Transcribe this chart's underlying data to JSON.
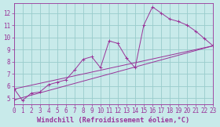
{
  "xlabel": "Windchill (Refroidissement éolien,°C)",
  "bg_color": "#c8eaea",
  "line_color": "#993399",
  "grid_color": "#99cccc",
  "text_color": "#993399",
  "xlim": [
    0,
    23
  ],
  "ylim": [
    4.5,
    12.8
  ],
  "xticks": [
    0,
    1,
    2,
    3,
    4,
    5,
    6,
    7,
    8,
    9,
    10,
    11,
    12,
    13,
    14,
    15,
    16,
    17,
    18,
    19,
    20,
    21,
    22,
    23
  ],
  "yticks": [
    5,
    6,
    7,
    8,
    9,
    10,
    11,
    12
  ],
  "line1_x": [
    0,
    1,
    2,
    3,
    4,
    5,
    6,
    7,
    8,
    9,
    10,
    11,
    12,
    13,
    14,
    15,
    16,
    17,
    18,
    19,
    20,
    21,
    22,
    23
  ],
  "line1_y": [
    5.8,
    4.8,
    5.4,
    5.5,
    6.1,
    6.3,
    6.5,
    7.3,
    8.2,
    8.4,
    7.5,
    9.7,
    9.5,
    8.3,
    7.5,
    11.0,
    12.5,
    12.0,
    11.5,
    11.3,
    11.0,
    10.5,
    9.9,
    9.3
  ],
  "line2_x": [
    0,
    23
  ],
  "line2_y": [
    5.75,
    9.3
  ],
  "line3_x": [
    0,
    23
  ],
  "line3_y": [
    4.85,
    9.3
  ],
  "tick_fontsize": 5.5,
  "label_fontsize": 6.2
}
